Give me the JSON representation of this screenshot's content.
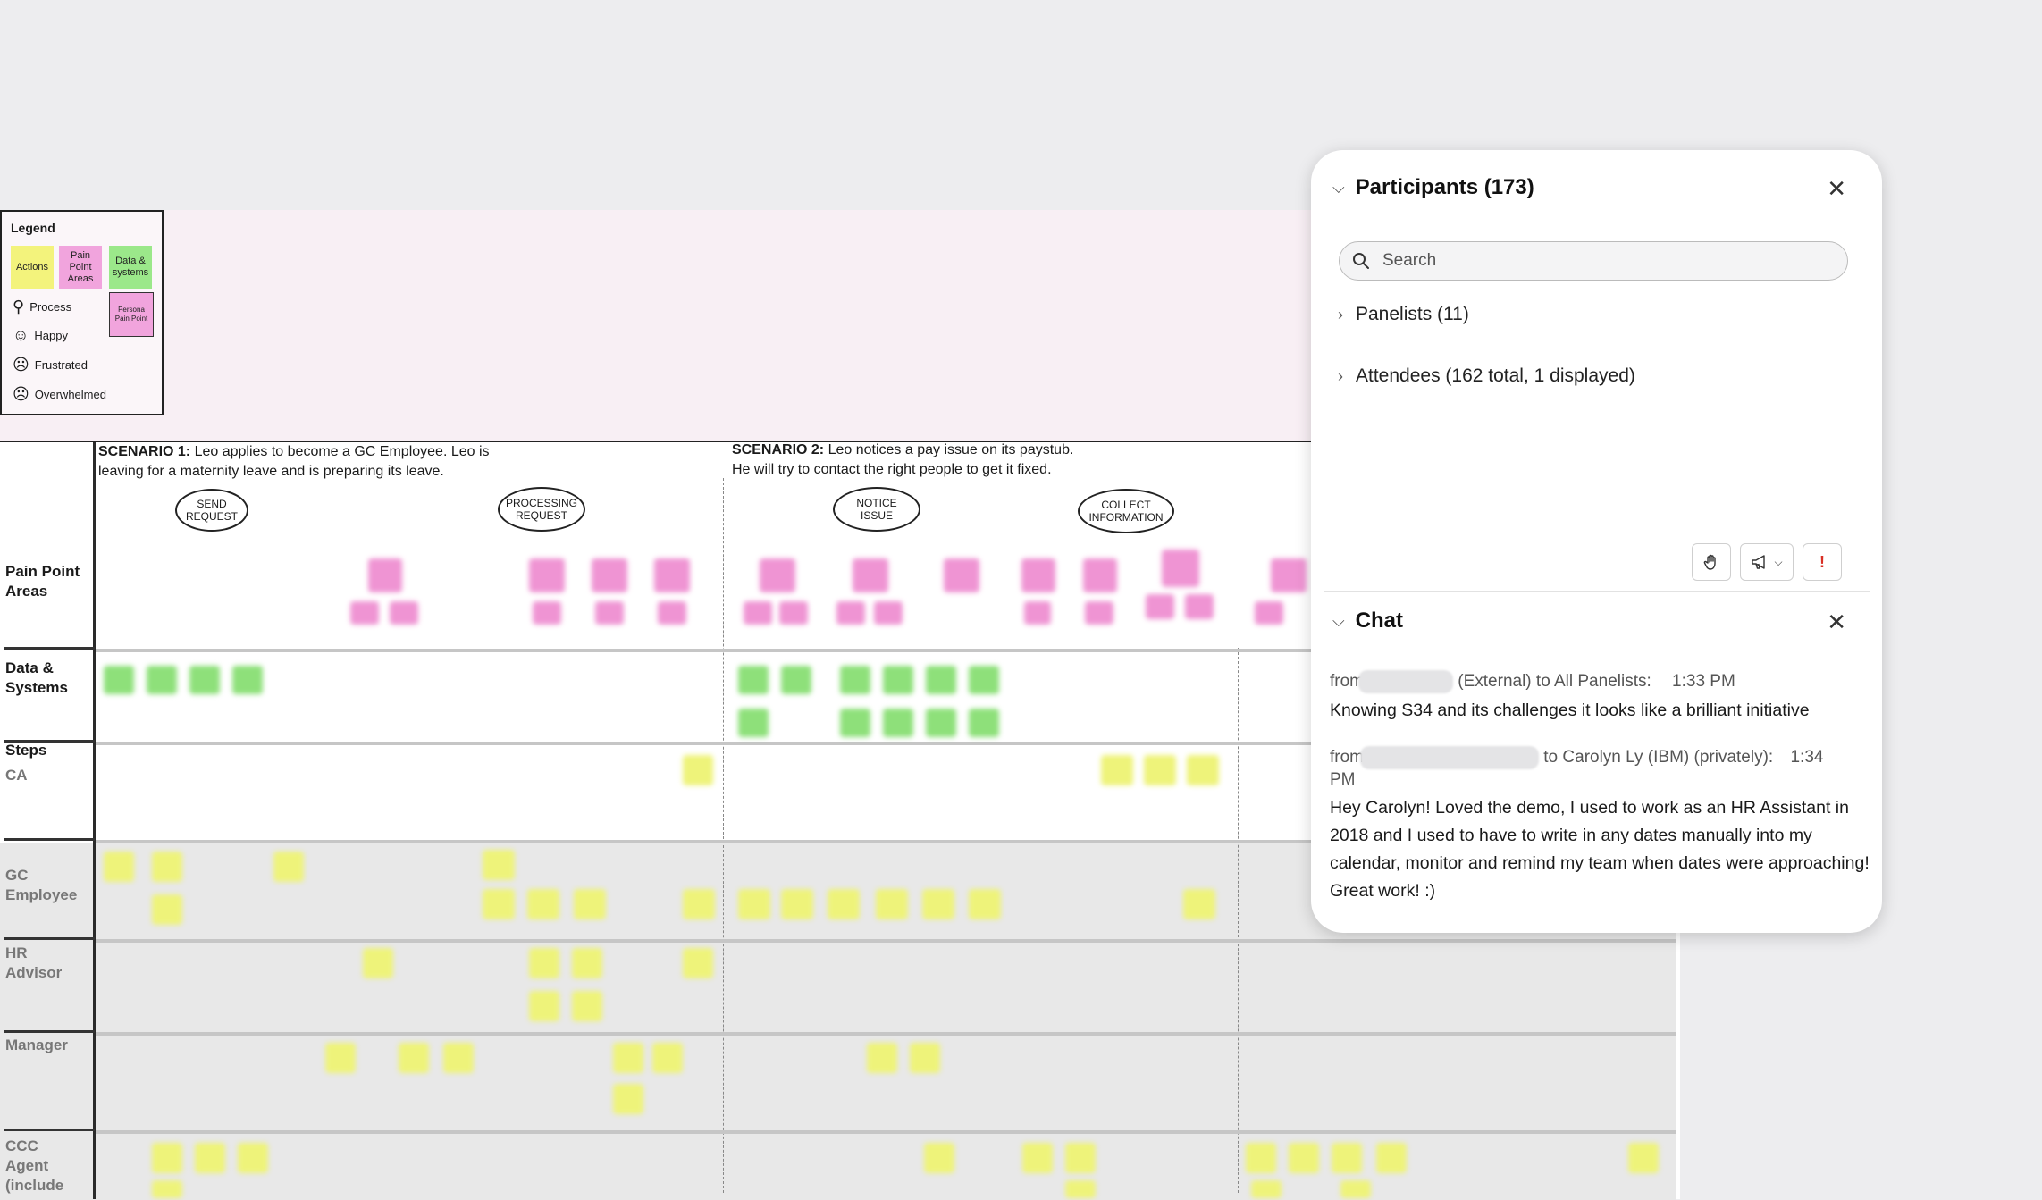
{
  "legend": {
    "title": "Legend",
    "swatches": [
      {
        "label": "Actions",
        "color": "#f3f37c"
      },
      {
        "label": "Pain Point Areas",
        "color": "#f1a4dd"
      },
      {
        "label": "Data & systems",
        "color": "#9be88a"
      },
      {
        "label": "Persona Pain Point",
        "color": "#f1a4dd"
      }
    ],
    "rows": [
      {
        "icon": "process-icon",
        "label": "Process"
      },
      {
        "icon": "happy-face-icon",
        "label": "Happy"
      },
      {
        "icon": "frustrated-face-icon",
        "label": "Frustrated"
      },
      {
        "icon": "overwhelmed-face-icon",
        "label": "Overwhelmed"
      }
    ]
  },
  "scenarios": [
    {
      "head": "SCENARIO 1:",
      "text1": " Leo applies to become a GC Employee. Leo is",
      "text2": "leaving for a maternity leave and is preparing its leave."
    },
    {
      "head": "SCENARIO 2:",
      "text1": " Leo notices a pay issue on its paystub.",
      "text2": "He will try to contact the right people to get it fixed."
    }
  ],
  "stages": [
    {
      "l1": "SEND",
      "l2": "REQUEST"
    },
    {
      "l1": "PROCESSING",
      "l2": "REQUEST"
    },
    {
      "l1": "NOTICE",
      "l2": "ISSUE"
    },
    {
      "l1": "COLLECT",
      "l2": "INFORMATION"
    }
  ],
  "lanes": {
    "pain": "Pain Point Areas",
    "data": "Data & Systems",
    "steps": "Steps",
    "ca": "CA",
    "gc": "GC Employee",
    "hr": "HR Advisor",
    "manager": "Manager",
    "ccc": "CCC Agent (include"
  },
  "participants": {
    "title": "Participants (173)",
    "search_placeholder": "Search",
    "groups": [
      "Panelists (11)",
      "Attendees (162 total, 1 displayed)"
    ],
    "buttons": {
      "raise_hand": "hand-icon",
      "announce": "megaphone-icon",
      "alert": "!"
    }
  },
  "chat": {
    "title": "Chat",
    "messages": [
      {
        "from": "from",
        "meta": " (External) to All Panelists:",
        "time": "1:33  PM",
        "text": "Knowing S34 and its challenges it looks like a brilliant initiative"
      },
      {
        "from": "from",
        "meta": " to Carolyn Ly (IBM) (privately):",
        "time": "1:34",
        "time2": "PM",
        "text": "Hey Carolyn! Loved the demo, I used to work as an HR Assistant in 2018 and I used to have to write in any dates manually into my calendar, monitor and remind my team when dates were approaching! Great work! :)"
      }
    ]
  },
  "colors": {
    "background": "#ededef",
    "panel": "#ffffff",
    "sticky_yellow": "#eef37a",
    "sticky_green": "#8ee07a",
    "sticky_pink": "#ef94d3",
    "alert_red": "#d93025"
  }
}
